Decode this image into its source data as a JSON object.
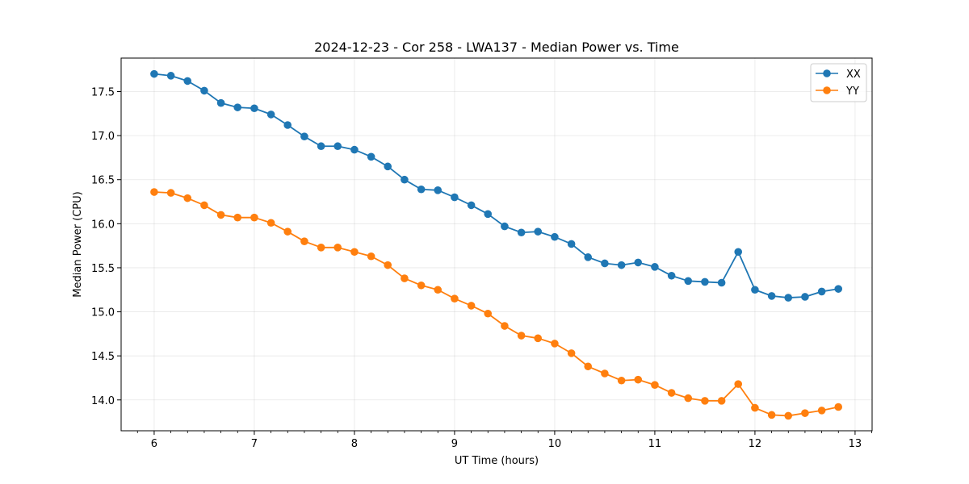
{
  "chart_data": {
    "type": "line",
    "title": "2024-12-23 - Cor 258 - LWA137 - Median Power vs. Time",
    "xlabel": "UT Time (hours)",
    "ylabel": "Median Power (CPU)",
    "xlim": [
      5.67,
      13.17
    ],
    "ylim": [
      13.65,
      17.88
    ],
    "xticks": [
      6,
      7,
      8,
      9,
      10,
      11,
      12,
      13
    ],
    "xtick_labels": [
      "6",
      "7",
      "8",
      "9",
      "10",
      "11",
      "12",
      "13"
    ],
    "yticks": [
      14.0,
      14.5,
      15.0,
      15.5,
      16.0,
      16.5,
      17.0,
      17.5
    ],
    "ytick_labels": [
      "14.0",
      "14.5",
      "15.0",
      "15.5",
      "16.0",
      "16.5",
      "17.0",
      "17.5"
    ],
    "grid": true,
    "legend_position": "top-right",
    "x": [
      6.0,
      6.167,
      6.333,
      6.5,
      6.667,
      6.833,
      7.0,
      7.167,
      7.333,
      7.5,
      7.667,
      7.833,
      8.0,
      8.167,
      8.333,
      8.5,
      8.667,
      8.833,
      9.0,
      9.167,
      9.333,
      9.5,
      9.667,
      9.833,
      10.0,
      10.167,
      10.333,
      10.5,
      10.667,
      10.833,
      11.0,
      11.167,
      11.333,
      11.5,
      11.667,
      11.833,
      12.0,
      12.167,
      12.333,
      12.5,
      12.667,
      12.833
    ],
    "series": [
      {
        "name": "XX",
        "color": "#1f77b4",
        "values": [
          17.7,
          17.68,
          17.62,
          17.51,
          17.37,
          17.32,
          17.31,
          17.24,
          17.12,
          16.99,
          16.88,
          16.88,
          16.84,
          16.76,
          16.65,
          16.5,
          16.39,
          16.38,
          16.3,
          16.21,
          16.11,
          15.97,
          15.9,
          15.91,
          15.85,
          15.77,
          15.62,
          15.55,
          15.53,
          15.56,
          15.51,
          15.41,
          15.35,
          15.34,
          15.33,
          15.68,
          15.25,
          15.18,
          15.16,
          15.17,
          15.23,
          15.26
        ]
      },
      {
        "name": "YY",
        "color": "#ff7f0e",
        "values": [
          16.36,
          16.35,
          16.29,
          16.21,
          16.1,
          16.07,
          16.07,
          16.01,
          15.91,
          15.8,
          15.73,
          15.73,
          15.68,
          15.63,
          15.53,
          15.38,
          15.3,
          15.25,
          15.15,
          15.07,
          14.98,
          14.84,
          14.73,
          14.7,
          14.64,
          14.53,
          14.38,
          14.3,
          14.22,
          14.23,
          14.17,
          14.08,
          14.02,
          13.99,
          13.99,
          14.18,
          13.91,
          13.83,
          13.82,
          13.85,
          13.88,
          13.92
        ]
      }
    ]
  }
}
